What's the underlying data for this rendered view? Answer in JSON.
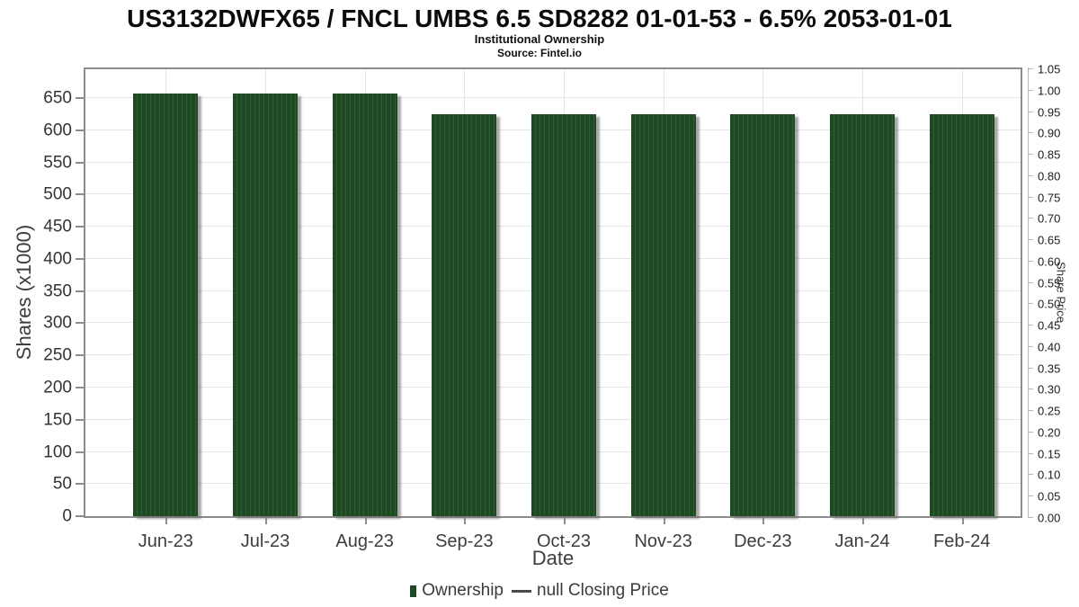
{
  "title": "US3132DWFX65 / FNCL UMBS 6.5 SD8282 01-01-53 - 6.5% 2053-01-01",
  "subtitle": "Institutional Ownership",
  "source": "Source: Fintel.io",
  "colors": {
    "bar": "#1d4a23",
    "bar_stripe": "#2f5c35",
    "bar_shadow": "#6e6e6e",
    "grid": "#e4e4e4",
    "plot_border": "#8c8c8c",
    "right_axis": "#b5b5b5",
    "axis_text": "#3d3d3d",
    "legend_line": "#4a4a4a"
  },
  "chart_data": {
    "type": "bar",
    "title": "US3132DWFX65 / FNCL UMBS 6.5 SD8282 01-01-53 - 6.5% 2053-01-01",
    "subtitle": "Institutional Ownership",
    "source": "Source: Fintel.io",
    "categories": [
      "Jun-23",
      "Jul-23",
      "Aug-23",
      "Sep-23",
      "Oct-23",
      "Nov-23",
      "Dec-23",
      "Jan-24",
      "Feb-24"
    ],
    "series": [
      {
        "name": "Ownership",
        "values": [
          657,
          657,
          657,
          625,
          625,
          625,
          625,
          625,
          625
        ]
      },
      {
        "name": "null Closing Price",
        "values": []
      }
    ],
    "xlabel": "Date",
    "ylabel_left": "Shares (x1000)",
    "ylabel_right": "Share Price",
    "ylim_left": [
      0,
      695
    ],
    "ylim_right": [
      0,
      1.0542
    ],
    "left_ticks": [
      0,
      50,
      100,
      150,
      200,
      250,
      300,
      350,
      400,
      450,
      500,
      550,
      600,
      650
    ],
    "right_ticks": [
      "0.00",
      "0.05",
      "0.10",
      "0.15",
      "0.20",
      "0.25",
      "0.30",
      "0.35",
      "0.40",
      "0.45",
      "0.50",
      "0.55",
      "0.60",
      "0.65",
      "0.70",
      "0.75",
      "0.80",
      "0.85",
      "0.90",
      "0.95",
      "1.00",
      "1.05"
    ],
    "grid": true,
    "legend_position": "bottom",
    "legend": [
      {
        "label": "Ownership",
        "marker": "bar"
      },
      {
        "label": "null Closing Price",
        "marker": "line"
      }
    ]
  }
}
